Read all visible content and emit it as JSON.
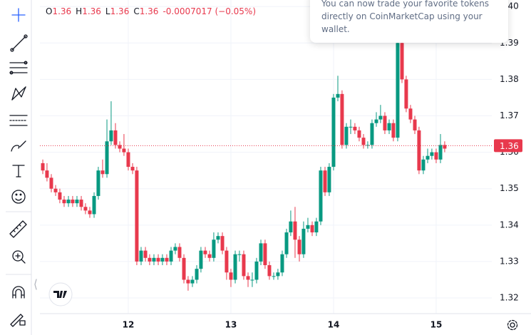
{
  "chart_data": {
    "type": "candlestick",
    "ohlc_legend": [
      {
        "key": "O",
        "value": "1.36"
      },
      {
        "key": "H",
        "value": "1.36"
      },
      {
        "key": "L",
        "value": "1.36"
      },
      {
        "key": "C",
        "value": "1.36"
      }
    ],
    "change_text": "-0.0007017 (−0.05%)",
    "up_color": "#089981",
    "down_color": "#e8394d",
    "xlim": [
      11.139,
      15.542
    ],
    "xticks": [
      12,
      13,
      14,
      15
    ],
    "ylim": [
      1.3157,
      1.4018
    ],
    "yticks": [
      1.32,
      1.33,
      1.34,
      1.35,
      1.36,
      1.37,
      1.38,
      1.39,
      {
        "value": 1.4,
        "label": "1.40"
      }
    ],
    "grid": true,
    "last_price": {
      "value": 1.3618,
      "label": "1.36"
    },
    "x": [
      11.167,
      11.208,
      11.25,
      11.292,
      11.333,
      11.375,
      11.417,
      11.458,
      11.5,
      11.542,
      11.583,
      11.625,
      11.667,
      11.708,
      11.75,
      11.792,
      11.833,
      11.875,
      11.917,
      11.958,
      12,
      12.042,
      12.083,
      12.125,
      12.167,
      12.208,
      12.25,
      12.292,
      12.333,
      12.375,
      12.417,
      12.458,
      12.5,
      12.542,
      12.583,
      12.625,
      12.667,
      12.708,
      12.75,
      12.792,
      12.833,
      12.875,
      12.917,
      12.958,
      13,
      13.042,
      13.083,
      13.125,
      13.167,
      13.208,
      13.25,
      13.292,
      13.333,
      13.375,
      13.417,
      13.458,
      13.5,
      13.542,
      13.583,
      13.625,
      13.667,
      13.708,
      13.75,
      13.792,
      13.833,
      13.875,
      13.917,
      13.958,
      14,
      14.042,
      14.083,
      14.125,
      14.167,
      14.208,
      14.25,
      14.292,
      14.333,
      14.375,
      14.417,
      14.458,
      14.5,
      14.542,
      14.583,
      14.625,
      14.667,
      14.708,
      14.75,
      14.792,
      14.833,
      14.875,
      14.917,
      14.958,
      15,
      15.042,
      15.083
    ],
    "open": [
      1.357,
      1.355,
      1.353,
      1.35,
      1.349,
      1.347,
      1.346,
      1.347,
      1.346,
      1.347,
      1.345,
      1.344,
      1.343,
      1.348,
      1.355,
      1.354,
      1.363,
      1.366,
      1.362,
      1.361,
      1.36,
      1.356,
      1.355,
      1.33,
      1.333,
      1.331,
      1.33,
      1.331,
      1.33,
      1.331,
      1.33,
      1.333,
      1.334,
      1.331,
      1.325,
      1.324,
      1.325,
      1.328,
      1.333,
      1.332,
      1.331,
      1.336,
      1.337,
      1.333,
      1.327,
      1.325,
      1.332,
      1.332,
      1.326,
      1.325,
      1.325,
      1.33,
      1.335,
      1.329,
      1.326,
      1.326,
      1.327,
      1.332,
      1.338,
      1.341,
      1.336,
      1.332,
      1.339,
      1.34,
      1.338,
      1.341,
      1.355,
      1.349,
      1.356,
      1.375,
      1.376,
      1.362,
      1.367,
      1.367,
      1.366,
      1.364,
      1.362,
      1.362,
      1.368,
      1.369,
      1.37,
      1.366,
      1.368,
      1.364,
      1.39,
      1.38,
      1.372,
      1.369,
      1.366,
      1.355,
      1.358,
      1.359,
      1.36,
      1.358,
      1.362
    ],
    "high": [
      1.358,
      1.357,
      1.354,
      1.351,
      1.35,
      1.348,
      1.348,
      1.348,
      1.348,
      1.348,
      1.346,
      1.345,
      1.349,
      1.356,
      1.358,
      1.369,
      1.374,
      1.368,
      1.363,
      1.365,
      1.361,
      1.357,
      1.356,
      1.334,
      1.334,
      1.332,
      1.332,
      1.332,
      1.332,
      1.332,
      1.334,
      1.335,
      1.335,
      1.332,
      1.326,
      1.326,
      1.329,
      1.334,
      1.334,
      1.333,
      1.338,
      1.338,
      1.338,
      1.334,
      1.328,
      1.333,
      1.333,
      1.333,
      1.327,
      1.327,
      1.331,
      1.336,
      1.336,
      1.33,
      1.327,
      1.328,
      1.333,
      1.339,
      1.344,
      1.345,
      1.337,
      1.341,
      1.342,
      1.341,
      1.342,
      1.356,
      1.356,
      1.357,
      1.376,
      1.381,
      1.377,
      1.368,
      1.369,
      1.368,
      1.367,
      1.365,
      1.363,
      1.369,
      1.371,
      1.373,
      1.371,
      1.369,
      1.369,
      1.391,
      1.391,
      1.381,
      1.373,
      1.37,
      1.367,
      1.359,
      1.361,
      1.361,
      1.361,
      1.365,
      1.363
    ],
    "low": [
      1.354,
      1.352,
      1.349,
      1.348,
      1.346,
      1.345,
      1.345,
      1.345,
      1.345,
      1.344,
      1.343,
      1.342,
      1.342,
      1.347,
      1.353,
      1.353,
      1.362,
      1.361,
      1.36,
      1.359,
      1.355,
      1.354,
      1.329,
      1.329,
      1.33,
      1.329,
      1.329,
      1.329,
      1.329,
      1.329,
      1.329,
      1.332,
      1.33,
      1.324,
      1.322,
      1.323,
      1.324,
      1.327,
      1.331,
      1.33,
      1.33,
      1.335,
      1.332,
      1.325,
      1.323,
      1.324,
      1.33,
      1.325,
      1.323,
      1.323,
      1.324,
      1.329,
      1.328,
      1.325,
      1.325,
      1.325,
      1.326,
      1.331,
      1.337,
      1.331,
      1.33,
      1.331,
      1.338,
      1.337,
      1.337,
      1.34,
      1.348,
      1.348,
      1.355,
      1.374,
      1.361,
      1.361,
      1.365,
      1.365,
      1.363,
      1.361,
      1.361,
      1.361,
      1.367,
      1.368,
      1.365,
      1.365,
      1.363,
      1.363,
      1.379,
      1.371,
      1.368,
      1.365,
      1.354,
      1.354,
      1.357,
      1.358,
      1.357,
      1.357,
      1.36
    ],
    "close": [
      1.355,
      1.353,
      1.35,
      1.349,
      1.347,
      1.346,
      1.347,
      1.346,
      1.347,
      1.345,
      1.344,
      1.343,
      1.348,
      1.355,
      1.354,
      1.363,
      1.366,
      1.362,
      1.361,
      1.36,
      1.356,
      1.355,
      1.33,
      1.333,
      1.331,
      1.33,
      1.331,
      1.33,
      1.331,
      1.33,
      1.333,
      1.334,
      1.331,
      1.325,
      1.324,
      1.325,
      1.328,
      1.333,
      1.332,
      1.331,
      1.336,
      1.337,
      1.333,
      1.327,
      1.325,
      1.332,
      1.332,
      1.326,
      1.325,
      1.325,
      1.33,
      1.335,
      1.329,
      1.326,
      1.326,
      1.327,
      1.332,
      1.338,
      1.341,
      1.336,
      1.332,
      1.339,
      1.34,
      1.338,
      1.341,
      1.355,
      1.349,
      1.356,
      1.375,
      1.376,
      1.362,
      1.367,
      1.367,
      1.366,
      1.364,
      1.362,
      1.362,
      1.368,
      1.369,
      1.37,
      1.366,
      1.368,
      1.364,
      1.39,
      1.38,
      1.372,
      1.369,
      1.366,
      1.355,
      1.358,
      1.359,
      1.36,
      1.358,
      1.362,
      1.361
    ]
  },
  "tooltip": {
    "lines": [
      "You can now trade your favorite tokens",
      "directly on CoinMarketCap using your",
      "wallet."
    ]
  }
}
